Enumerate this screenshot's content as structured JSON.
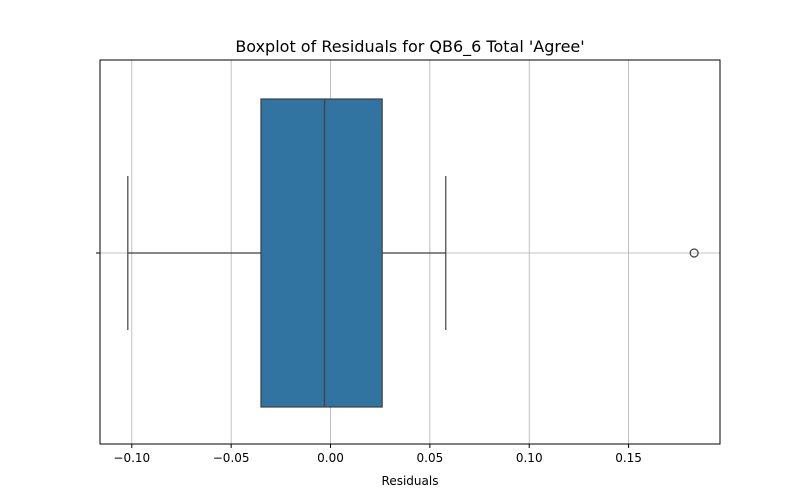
{
  "chart_data": {
    "type": "boxplot",
    "title": "Boxplot of Residuals for QB6_6 Total 'Agree'",
    "xlabel": "Residuals",
    "ylabel": "",
    "orientation": "horizontal",
    "xlim": [
      -0.116,
      0.196
    ],
    "xticks": [
      -0.1,
      -0.05,
      0.0,
      0.05,
      0.1,
      0.15
    ],
    "xtick_labels": [
      "−0.10",
      "−0.05",
      "0.00",
      "0.05",
      "0.10",
      "0.15"
    ],
    "grid": true,
    "box": {
      "whisker_low": -0.102,
      "q1": -0.035,
      "median": -0.003,
      "q3": 0.026,
      "whisker_high": 0.058
    },
    "outliers": [
      0.183
    ],
    "box_color": "#3274a1",
    "line_color": "#3f3f3f"
  }
}
